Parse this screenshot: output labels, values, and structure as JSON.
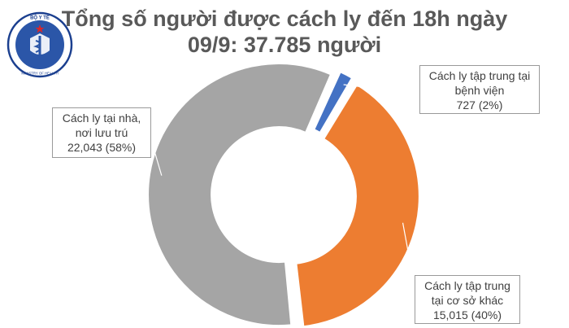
{
  "title_line1": "Tổng số người được cách ly đến 18h ngày",
  "title_line2": "09/9: 37.785 người",
  "logo": {
    "top_text": "BỘ Y TẾ",
    "bottom_text": "MINISTRY OF HEALTH",
    "icon": "ministry-of-health-logo"
  },
  "callouts": {
    "home": {
      "line1": "Cách ly tại nhà,",
      "line2": "nơi lưu trú",
      "line3": "22,043 (58%)"
    },
    "hospital": {
      "line1": "Cách ly tập trung tại",
      "line2": "bệnh viện",
      "line3": "727 (2%)"
    },
    "facility": {
      "line1": "Cách ly tập trung",
      "line2": "tại cơ sở khác",
      "line3": "15,015 (40%)"
    }
  },
  "colors": {
    "home": "#a5a5a5",
    "hospital": "#4472c4",
    "facility": "#ed7d31",
    "title": "#595959"
  },
  "chart_data": {
    "type": "pie",
    "style": "doughnut",
    "categories": [
      "Cách ly tập trung tại bệnh viện",
      "Cách ly tập trung tại cơ sở khác",
      "Cách ly tại nhà, nơi lưu trú"
    ],
    "values": [
      727,
      15015,
      22043
    ],
    "percent_labels": [
      "2%",
      "40%",
      "58%"
    ],
    "colors": [
      "#4472c4",
      "#ed7d31",
      "#a5a5a5"
    ],
    "title": "Tổng số người được cách ly đến 18h ngày 09/9: 37.785 người"
  }
}
